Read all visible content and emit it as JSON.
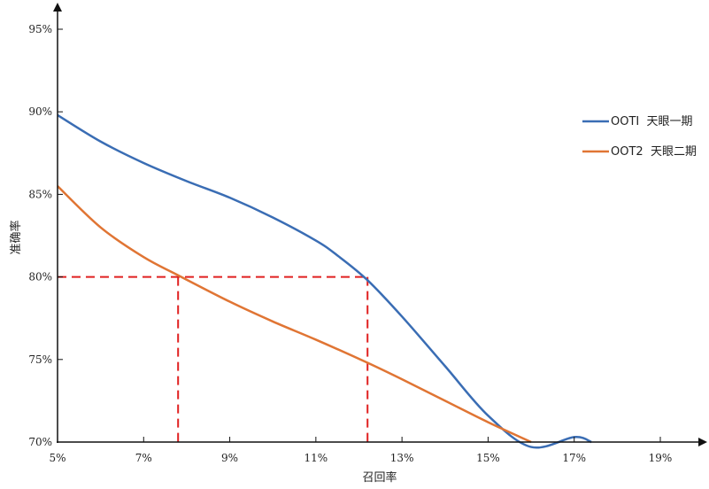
{
  "chart_data": {
    "type": "line",
    "xlabel": "召回率",
    "ylabel": "准确率",
    "xlim": [
      5,
      19.5
    ],
    "ylim": [
      70,
      95
    ],
    "x_ticks": [
      5,
      7,
      9,
      11,
      13,
      15,
      17,
      19
    ],
    "y_ticks": [
      70,
      75,
      80,
      85,
      90,
      95
    ],
    "x_tick_labels": [
      "5%",
      "7%",
      "9%",
      "11%",
      "13%",
      "15%",
      "17%",
      "19%"
    ],
    "y_tick_labels": [
      "70%",
      "75%",
      "80%",
      "85%",
      "90%",
      "95%"
    ],
    "legend_position": "right",
    "series": [
      {
        "name": "OOTI  天眼一期",
        "color": "#3a6db4",
        "x": [
          5.0,
          6.0,
          7.0,
          8.0,
          9.0,
          10.0,
          11.0,
          11.5,
          12.2,
          13.0,
          14.0,
          15.0,
          16.0,
          17.0,
          17.4
        ],
        "y": [
          89.8,
          88.2,
          86.9,
          85.8,
          84.8,
          83.6,
          82.2,
          81.3,
          79.8,
          77.6,
          74.6,
          71.6,
          69.7,
          70.3,
          70.0
        ]
      },
      {
        "name": "OOT2  天眼二期",
        "color": "#e07534",
        "x": [
          5.0,
          6.0,
          7.0,
          7.8,
          9.0,
          10.0,
          11.0,
          12.2,
          13.0,
          14.0,
          15.0,
          16.0
        ],
        "y": [
          85.5,
          83.0,
          81.2,
          80.1,
          78.5,
          77.3,
          76.2,
          74.8,
          73.8,
          72.5,
          71.2,
          70.0
        ]
      }
    ],
    "reference_lines": {
      "color": "#e02020",
      "y": 80,
      "x": [
        7.8,
        12.2
      ]
    }
  }
}
